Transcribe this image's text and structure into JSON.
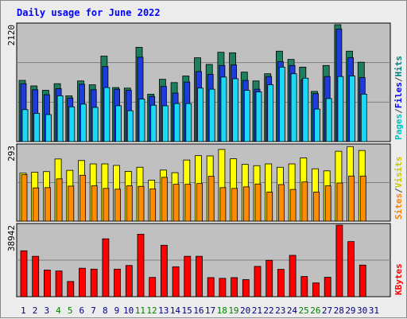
{
  "chart_data": {
    "type": "bar",
    "title": "Daily usage for June 2022",
    "title_color": "#0000ff",
    "days": [
      "1",
      "2",
      "3",
      "4",
      "5",
      "6",
      "7",
      "8",
      "9",
      "10",
      "11",
      "12",
      "13",
      "14",
      "15",
      "16",
      "17",
      "18",
      "19",
      "20",
      "21",
      "22",
      "23",
      "24",
      "25",
      "26",
      "27",
      "28",
      "29",
      "30",
      "31"
    ],
    "weekend_days": [
      "4",
      "5",
      "11",
      "12",
      "18",
      "19",
      "25",
      "26"
    ],
    "weekday_color": "#000080",
    "weekend_color": "#008000",
    "panels": [
      {
        "id": "hits-panel",
        "ymax_label": "2120",
        "ylim": [
          0,
          2120
        ],
        "axis_labels": [
          {
            "text": "Hits",
            "color": "#008080"
          },
          {
            "text": "/",
            "color": "#444444"
          },
          {
            "text": "Files",
            "color": "#0000ff"
          },
          {
            "text": "/",
            "color": "#444444"
          },
          {
            "text": "Pages",
            "color": "#00c0c0"
          }
        ],
        "series": [
          {
            "name": "Hits",
            "color": "#1e7f5c",
            "values": [
              1110,
              1010,
              930,
              1050,
              830,
              1100,
              1030,
              1550,
              980,
              970,
              1710,
              860,
              1130,
              1070,
              1190,
              1520,
              1400,
              1620,
              1610,
              1260,
              1100,
              1230,
              1640,
              1490,
              1350,
              910,
              1380,
              2120,
              1640,
              1440,
              0
            ]
          },
          {
            "name": "Files",
            "color": "#1e3cdc",
            "values": [
              1050,
              940,
              850,
              960,
              790,
              1040,
              940,
              1360,
              950,
              930,
              1530,
              820,
              1000,
              880,
              1080,
              1270,
              1220,
              1380,
              1390,
              1110,
              950,
              1180,
              1450,
              1380,
              1120,
              870,
              1180,
              2040,
              1520,
              1160,
              0
            ]
          },
          {
            "name": "Pages",
            "color": "#19d9f6",
            "values": [
              580,
              510,
              490,
              830,
              630,
              680,
              620,
              980,
              650,
              560,
              770,
              660,
              650,
              690,
              690,
              970,
              950,
              1170,
              1140,
              930,
              900,
              1030,
              1350,
              1230,
              1150,
              590,
              780,
              1180,
              1190,
              860,
              0
            ]
          }
        ]
      },
      {
        "id": "visits-panel",
        "ymax_label": "293",
        "ylim": [
          0,
          293
        ],
        "axis_labels": [
          {
            "text": "Visits",
            "color": "#c8c800"
          },
          {
            "text": "/",
            "color": "#444444"
          },
          {
            "text": "Sites",
            "color": "#ff8000"
          }
        ],
        "series": [
          {
            "name": "Visits",
            "color": "#ffff00",
            "values": [
              186,
              190,
              192,
              241,
              197,
              235,
              222,
              222,
              216,
              193,
              209,
              159,
              198,
              188,
              237,
              254,
              253,
              278,
              242,
              220,
              215,
              222,
              209,
              222,
              245,
              203,
              195,
              271,
              289,
              274,
              0
            ]
          },
          {
            "name": "Sites",
            "color": "#ff8c00",
            "values": [
              180,
              129,
              130,
              164,
              136,
              178,
              137,
              127,
              124,
              137,
              135,
              125,
              170,
              143,
              143,
              146,
              174,
              130,
              127,
              133,
              144,
              113,
              142,
              123,
              152,
              113,
              137,
              148,
              175,
              175,
              0
            ]
          }
        ]
      },
      {
        "id": "kbytes-panel",
        "ymax_label": "38942",
        "ylim": [
          0,
          38942
        ],
        "axis_labels": [
          {
            "text": "KBytes",
            "color": "#ff0000"
          }
        ],
        "series": [
          {
            "name": "KBytes",
            "color": "#ff0000",
            "values": [
              25000,
              22000,
              14500,
              14000,
              8300,
              15500,
              15000,
              31500,
              15000,
              17000,
              34000,
              10500,
              28000,
              16300,
              22000,
              22000,
              10400,
              10000,
              10400,
              9300,
              16500,
              19800,
              14900,
              22500,
              11000,
              7500,
              10600,
              38942,
              30000,
              17200,
              0
            ]
          }
        ]
      }
    ]
  }
}
